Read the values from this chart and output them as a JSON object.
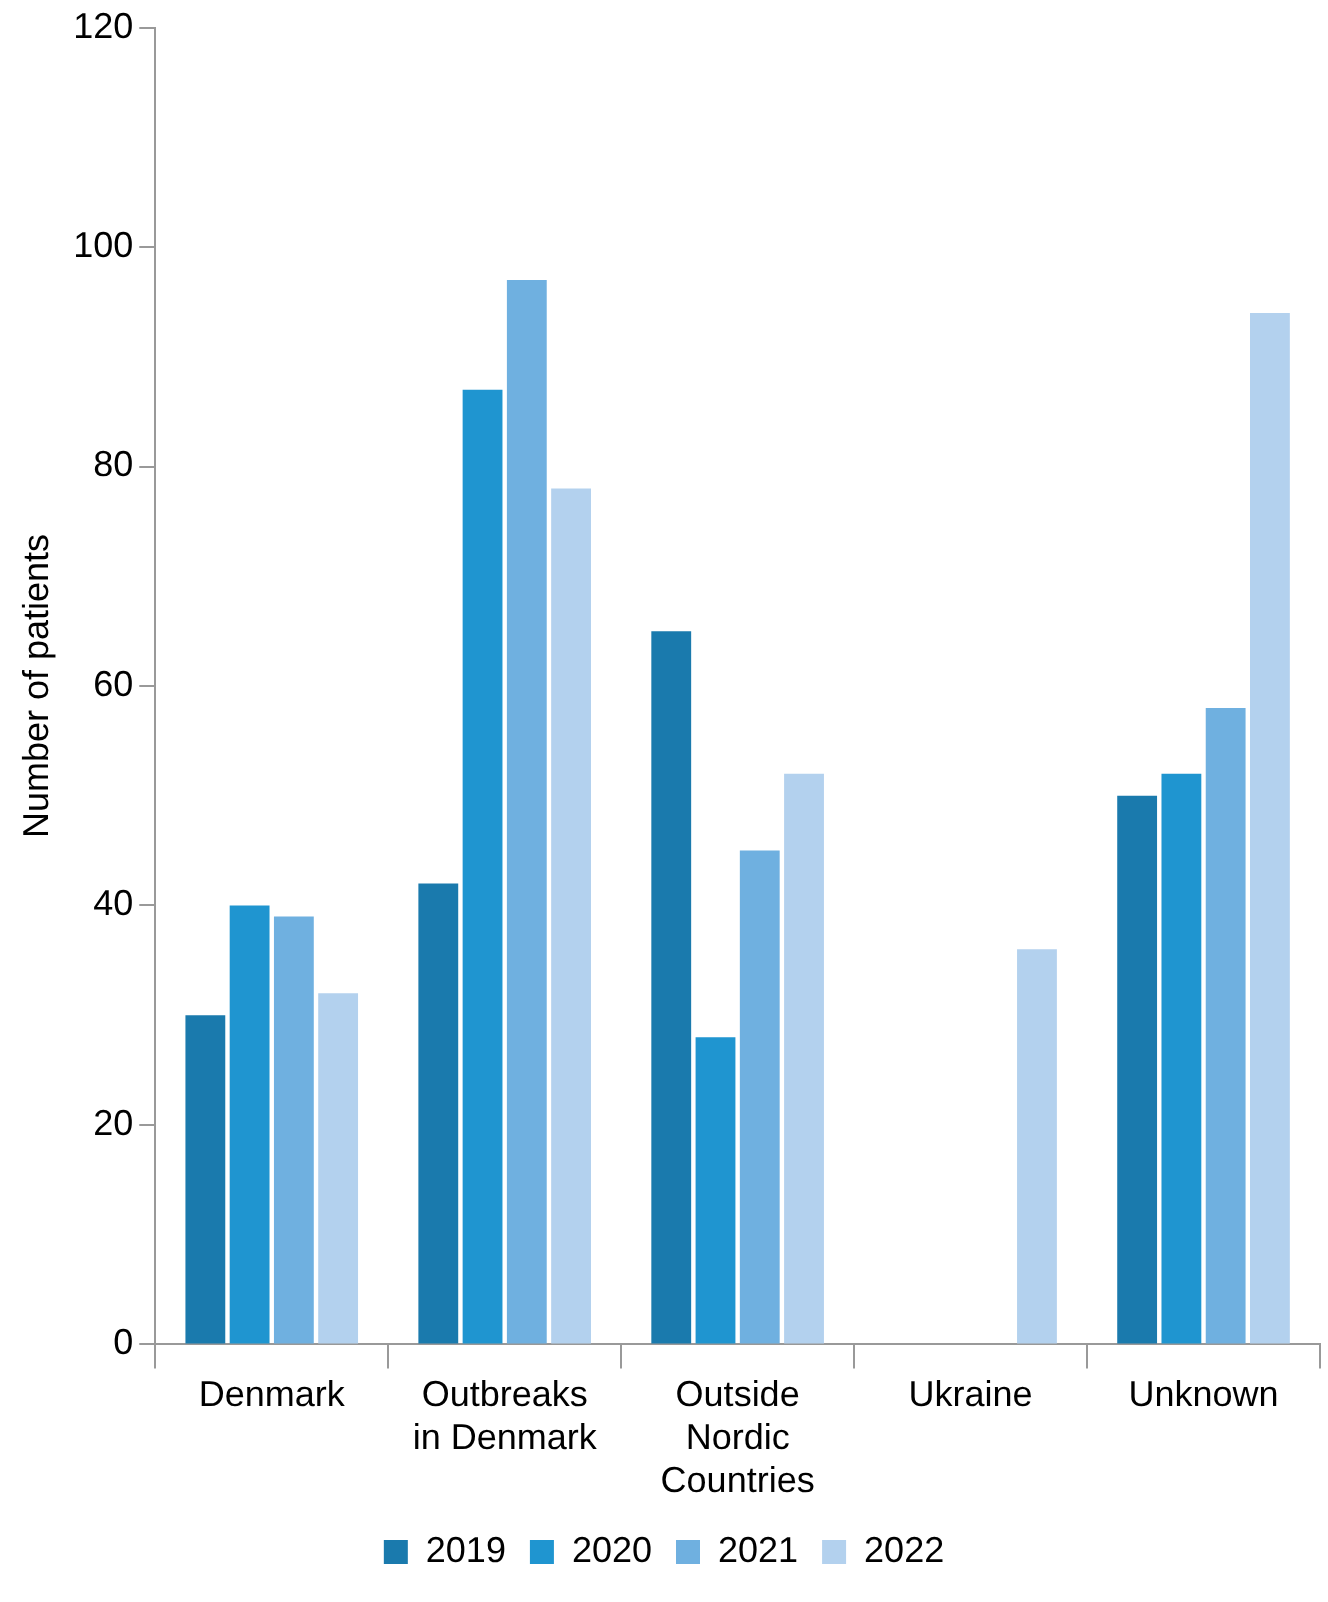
{
  "chart_data": {
    "type": "bar",
    "ylabel": "Number of patients",
    "categories": [
      "Denmark",
      "Outbreaks in Denmark",
      "Outside Nordic Countries",
      "Ukraine",
      "Unknown"
    ],
    "series": [
      {
        "name": "2019",
        "color": "#1a7aad",
        "values": [
          30,
          42,
          65,
          0,
          50
        ]
      },
      {
        "name": "2020",
        "color": "#1f95d0",
        "values": [
          40,
          87,
          28,
          0,
          52
        ]
      },
      {
        "name": "2021",
        "color": "#6fb0e0",
        "values": [
          39,
          97,
          45,
          0,
          58
        ]
      },
      {
        "name": "2022",
        "color": "#b3d1ee",
        "values": [
          32,
          78,
          52,
          36,
          94
        ]
      }
    ],
    "ylim": [
      0,
      120
    ],
    "yticks": [
      0,
      20,
      40,
      60,
      80,
      100,
      120
    ],
    "grid": false,
    "legend": "bottom"
  }
}
